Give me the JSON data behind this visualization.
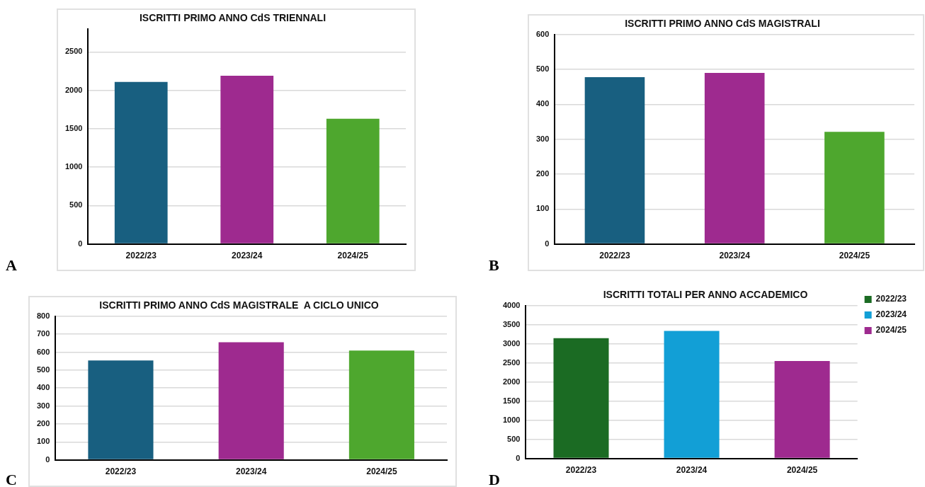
{
  "chart_data": [
    {
      "type": "bar",
      "title": "ISCRITTI PRIMO ANNO CdS TRIENNALI",
      "categories": [
        "2022/23",
        "2023/24",
        "2024/25"
      ],
      "values": [
        2110,
        2190,
        1630
      ],
      "colors": [
        "#185f80",
        "#9e2a8f",
        "#4ea72e"
      ],
      "ylim": [
        0,
        2800
      ],
      "yticks": [
        0,
        500,
        1000,
        1500,
        2000,
        2500
      ],
      "grid": "y",
      "annotations": [
        "A"
      ]
    },
    {
      "type": "bar",
      "title": "ISCRITTI PRIMO ANNO CdS MAGISTRALI",
      "categories": [
        "2022/23",
        "2023/24",
        "2024/25"
      ],
      "values": [
        478,
        490,
        321
      ],
      "colors": [
        "#185f80",
        "#9e2a8f",
        "#4ea72e"
      ],
      "ylim": [
        0,
        600
      ],
      "yticks": [
        0,
        100,
        200,
        300,
        400,
        500,
        600
      ],
      "grid": "y",
      "annotations": [
        "B"
      ]
    },
    {
      "type": "bar",
      "title": "ISCRITTI PRIMO ANNO CdS MAGISTRALE  A CICLO UNICO",
      "categories": [
        "2022/23",
        "2023/24",
        "2024/25"
      ],
      "values": [
        554,
        655,
        609
      ],
      "colors": [
        "#185f80",
        "#9e2a8f",
        "#4ea72e"
      ],
      "ylim": [
        0,
        800
      ],
      "yticks": [
        0,
        100,
        200,
        300,
        400,
        500,
        600,
        700,
        800
      ],
      "grid": "y",
      "annotations": [
        "C"
      ]
    },
    {
      "type": "bar",
      "title": "ISCRITTI TOTALI PER ANNO ACCADEMICO",
      "categories": [
        "2022/23",
        "2023/24",
        "2024/25"
      ],
      "series": [
        {
          "name": "2022/23",
          "color": "#1b6b23",
          "values": [
            3150,
            null,
            null
          ]
        },
        {
          "name": "2023/24",
          "color": "#129fd6",
          "values": [
            null,
            3340,
            null
          ]
        },
        {
          "name": "2024/25",
          "color": "#9e2a8f",
          "values": [
            null,
            null,
            2550
          ]
        }
      ],
      "ylim": [
        0,
        4000
      ],
      "yticks": [
        0,
        500,
        1000,
        1500,
        2000,
        2500,
        3000,
        3500,
        4000
      ],
      "grid": "y",
      "legend": "top right",
      "annotations": [
        "D"
      ]
    }
  ]
}
